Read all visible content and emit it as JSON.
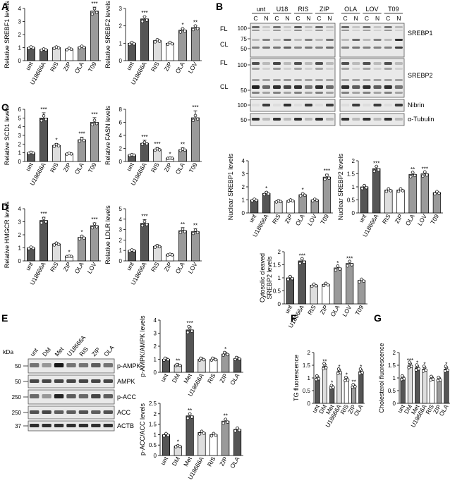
{
  "panel_letters": [
    "A",
    "B",
    "C",
    "D",
    "E",
    "F",
    "G"
  ],
  "colors": {
    "dark": "#555555",
    "mid": "#9a9a9a",
    "light": "#dedede",
    "white": "#ffffff",
    "point": "#ffffff"
  },
  "chart_data": [
    {
      "id": "A1",
      "type": "bar",
      "ylabel": "Relative SREBF1 levels",
      "ylim": [
        0,
        4
      ],
      "yticks": [
        0,
        1,
        2,
        3,
        4
      ],
      "categories": [
        "unt",
        "U18666A",
        "RIS",
        "ZIP",
        "OLA",
        "T09"
      ],
      "values": [
        1.0,
        0.85,
        1.0,
        0.9,
        1.05,
        3.8
      ],
      "sig": [
        "",
        "",
        "",
        "",
        "",
        "***"
      ],
      "shades": [
        "dark",
        "dark",
        "light",
        "white",
        "mid",
        "mid"
      ]
    },
    {
      "id": "A2",
      "type": "bar",
      "ylabel": "Relative SREBF2 levels",
      "ylim": [
        0,
        3
      ],
      "yticks": [
        0,
        1,
        2,
        3
      ],
      "categories": [
        "unt",
        "U18666A",
        "RIS",
        "ZIP",
        "OLA",
        "LOV"
      ],
      "values": [
        1.0,
        2.4,
        1.15,
        1.0,
        1.75,
        1.9
      ],
      "sig": [
        "",
        "***",
        "",
        "",
        "*",
        "**"
      ],
      "shades": [
        "dark",
        "dark",
        "light",
        "white",
        "mid",
        "mid"
      ]
    },
    {
      "id": "C1",
      "type": "bar",
      "ylabel": "Relative SCD1 levels",
      "ylim": [
        0,
        6
      ],
      "yticks": [
        0,
        1,
        2,
        3,
        4,
        5,
        6
      ],
      "categories": [
        "unt",
        "U18666A",
        "RIS",
        "ZIP",
        "OLA",
        "T09"
      ],
      "values": [
        1.0,
        5.0,
        1.85,
        0.9,
        2.5,
        4.5
      ],
      "sig": [
        "",
        "***",
        "*",
        "",
        "***",
        "***"
      ],
      "shades": [
        "dark",
        "dark",
        "light",
        "white",
        "mid",
        "mid"
      ]
    },
    {
      "id": "C2",
      "type": "bar",
      "ylabel": "Relative FASN levels",
      "ylim": [
        0,
        8
      ],
      "yticks": [
        0,
        2,
        4,
        6,
        8
      ],
      "categories": [
        "unt",
        "U18666A",
        "RIS",
        "ZIP",
        "OLA",
        "T09"
      ],
      "values": [
        1.0,
        2.8,
        1.85,
        0.5,
        1.8,
        6.7
      ],
      "sig": [
        "",
        "***",
        "***",
        "*",
        "**",
        "***"
      ],
      "shades": [
        "dark",
        "dark",
        "light",
        "white",
        "mid",
        "mid"
      ]
    },
    {
      "id": "D1",
      "type": "bar",
      "ylabel": "Relative HMGCR levels",
      "ylim": [
        0,
        4
      ],
      "yticks": [
        0,
        1,
        2,
        3,
        4
      ],
      "categories": [
        "unt",
        "U18666A",
        "RIS",
        "ZIP",
        "OLA",
        "LOV"
      ],
      "values": [
        1.0,
        3.1,
        1.3,
        0.35,
        1.8,
        2.7
      ],
      "sig": [
        "",
        "***",
        "",
        "*",
        "*",
        "***"
      ],
      "shades": [
        "dark",
        "dark",
        "light",
        "white",
        "mid",
        "mid"
      ]
    },
    {
      "id": "D2",
      "type": "bar",
      "ylabel": "Relative LDLR levels",
      "ylim": [
        0,
        5
      ],
      "yticks": [
        0,
        1,
        2,
        3,
        4,
        5
      ],
      "categories": [
        "unt",
        "U18666A",
        "RIS",
        "ZIP",
        "OLA",
        "LOV"
      ],
      "values": [
        1.0,
        3.6,
        1.4,
        0.6,
        2.9,
        2.8
      ],
      "sig": [
        "",
        "***",
        "",
        "",
        "**",
        "**"
      ],
      "shades": [
        "dark",
        "dark",
        "light",
        "white",
        "mid",
        "mid"
      ]
    },
    {
      "id": "B1",
      "type": "bar",
      "ylabel": "Nuclear SREBP1 levels",
      "ylim": [
        0,
        4
      ],
      "yticks": [
        0,
        1,
        2,
        3,
        4
      ],
      "categories": [
        "unt",
        "U18666A",
        "RIS",
        "ZIP",
        "OLA",
        "LOV",
        "T09"
      ],
      "values": [
        1.0,
        1.5,
        0.9,
        0.95,
        1.4,
        1.0,
        2.75
      ],
      "sig": [
        "",
        "*",
        "",
        "",
        "*",
        "",
        "***"
      ],
      "shades": [
        "dark",
        "dark",
        "light",
        "white",
        "mid",
        "mid",
        "mid"
      ]
    },
    {
      "id": "B2",
      "type": "bar",
      "ylabel": "Nuclear SREBP2 levels",
      "ylim": [
        0,
        2.0
      ],
      "yticks": [
        0,
        0.5,
        1.0,
        1.5,
        2.0
      ],
      "categories": [
        "unt",
        "U18666A",
        "RIS",
        "ZIP",
        "OLA",
        "LOV",
        "T09"
      ],
      "values": [
        1.0,
        1.7,
        0.88,
        0.88,
        1.48,
        1.5,
        0.78
      ],
      "sig": [
        "",
        "***",
        "",
        "",
        "**",
        "***",
        ""
      ],
      "shades": [
        "dark",
        "dark",
        "light",
        "white",
        "mid",
        "mid",
        "mid"
      ]
    },
    {
      "id": "B3",
      "type": "bar",
      "ylabel": "Cytosolic cleaved SREBP2 levels",
      "ylim": [
        0,
        2.0
      ],
      "yticks": [
        0,
        0.5,
        1.0,
        1.5,
        2.0
      ],
      "categories": [
        "unt",
        "U18666A",
        "RIS",
        "ZIP",
        "OLA",
        "LOV",
        "T09"
      ],
      "values": [
        1.0,
        1.65,
        0.72,
        0.75,
        1.38,
        1.55,
        0.9
      ],
      "sig": [
        "",
        "***",
        "",
        "",
        "*",
        "***",
        ""
      ],
      "shades": [
        "dark",
        "dark",
        "light",
        "white",
        "mid",
        "mid",
        "mid"
      ]
    },
    {
      "id": "E1",
      "type": "bar",
      "ylabel": "p-AMPK/AMPK levels",
      "ylim": [
        0,
        4
      ],
      "yticks": [
        0,
        1,
        2,
        3,
        4
      ],
      "categories": [
        "unt",
        "DM",
        "Met",
        "U18666A",
        "RIS",
        "ZIP",
        "OLA"
      ],
      "values": [
        1.0,
        0.55,
        3.25,
        1.0,
        1.0,
        1.4,
        1.05
      ],
      "sig": [
        "",
        "**",
        "***",
        "",
        "",
        "*",
        ""
      ],
      "shades": [
        "dark",
        "light",
        "dark",
        "light",
        "white",
        "mid",
        "dark"
      ]
    },
    {
      "id": "E2",
      "type": "bar",
      "ylabel": "p-ACC/ACC levels",
      "ylim": [
        0,
        2.5
      ],
      "yticks": [
        0,
        0.5,
        1.0,
        1.5,
        2.0,
        2.5
      ],
      "categories": [
        "unt",
        "DM",
        "Met",
        "U18666A",
        "RIS",
        "ZIP",
        "OLA"
      ],
      "values": [
        1.0,
        0.45,
        1.9,
        1.1,
        1.0,
        1.65,
        1.25
      ],
      "sig": [
        "",
        "*",
        "**",
        "",
        "",
        "**",
        ""
      ],
      "shades": [
        "dark",
        "light",
        "dark",
        "light",
        "white",
        "mid",
        "dark"
      ]
    },
    {
      "id": "F",
      "type": "bar",
      "ylabel": "TG fluorescence",
      "ylim": [
        0,
        2.0
      ],
      "yticks": [
        0,
        0.5,
        1.0,
        1.5,
        2.0
      ],
      "categories": [
        "unt",
        "DM",
        "Met",
        "U18666A",
        "RIS",
        "ZIP",
        "OLA"
      ],
      "values": [
        1.0,
        1.45,
        0.65,
        1.25,
        0.95,
        0.68,
        1.25
      ],
      "sig": [
        "",
        "**",
        "*",
        "*",
        "*",
        "**",
        "*"
      ],
      "shades": [
        "dark",
        "light",
        "dark",
        "light",
        "white",
        "mid",
        "dark"
      ]
    },
    {
      "id": "G",
      "type": "bar",
      "ylabel": "Cholesterol fluorescence",
      "ylim": [
        0,
        2.0
      ],
      "yticks": [
        0,
        0.5,
        1.0,
        1.5,
        2.0
      ],
      "categories": [
        "unt",
        "DM",
        "Met",
        "U18666A",
        "RIS",
        "ZIP",
        "OLA"
      ],
      "values": [
        1.0,
        1.5,
        1.4,
        1.35,
        0.98,
        0.95,
        1.35
      ],
      "sig": [
        "",
        "***",
        "*",
        "*",
        "",
        "",
        "*"
      ],
      "shades": [
        "dark",
        "light",
        "dark",
        "light",
        "white",
        "mid",
        "dark"
      ]
    }
  ],
  "blotB": {
    "groups_left": [
      "unt",
      "U18",
      "RIS",
      "ZIP"
    ],
    "groups_right": [
      "LOV",
      "OLA",
      "T09"
    ],
    "lanes_left": [
      "C",
      "N",
      "C",
      "N",
      "C",
      "N",
      "C",
      "N"
    ],
    "lanes_right": [
      "C",
      "N",
      "C",
      "N",
      "C",
      "N"
    ],
    "groups_right_order": [
      "OLA",
      "LOV",
      "T09"
    ],
    "row_labels": [
      "SREBP1",
      "SREBP2",
      "Nibrin",
      "α-Tubulin"
    ],
    "fl": "FL",
    "cl": "CL",
    "mw": [
      "100",
      "75",
      "50",
      "100",
      "50",
      "100",
      "50"
    ]
  },
  "blotE": {
    "kda": "kDa",
    "lanes": [
      "unt",
      "DM",
      "Met",
      "U18666A",
      "RIS",
      "ZIP",
      "OLA"
    ],
    "row_labels": [
      "p-AMPK",
      "AMPK",
      "p-ACC",
      "ACC",
      "ACTB"
    ],
    "mw": [
      "50",
      "50",
      "250",
      "250",
      "37"
    ]
  }
}
